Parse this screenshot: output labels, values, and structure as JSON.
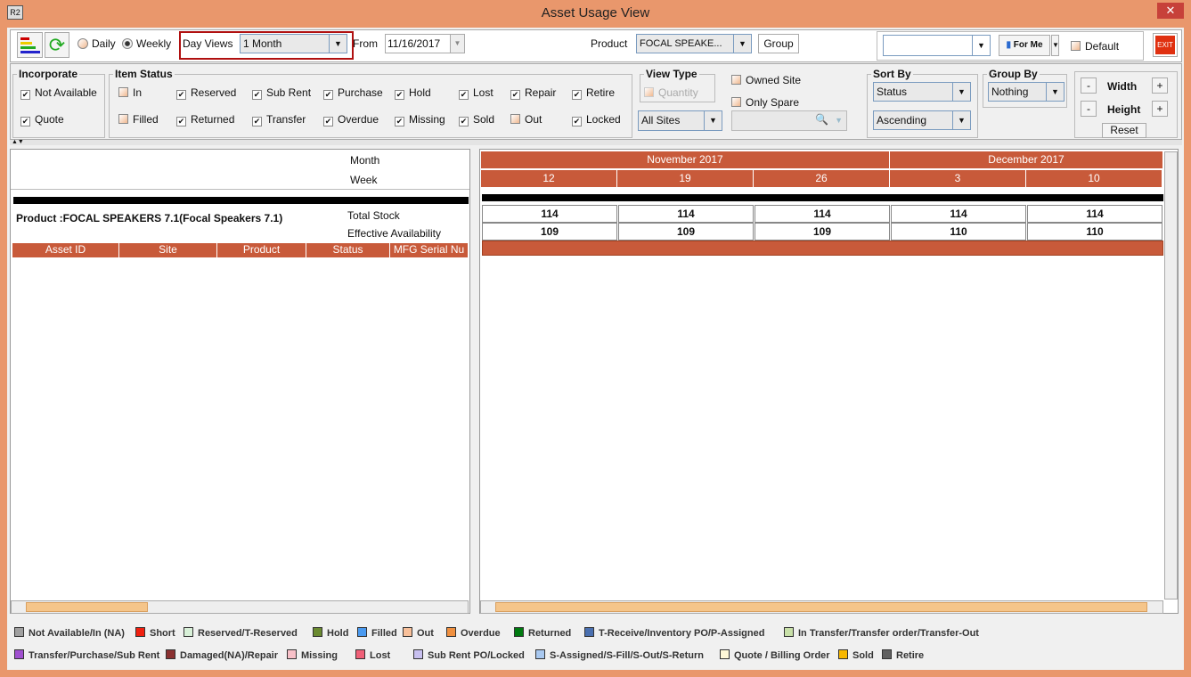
{
  "window": {
    "title": "Asset Usage View",
    "logo": "R2",
    "close": "✕"
  },
  "toolbar": {
    "daily": "Daily",
    "weekly": "Weekly",
    "weekly_selected": true,
    "day_views_label": "Day Views",
    "day_views_value": "1 Month",
    "from_label": "From",
    "from_value": "11/16/2017",
    "product_label": "Product",
    "product_value": "FOCAL SPEAKE...",
    "group_btn": "Group",
    "for_me": "For Me",
    "default_label": "Default",
    "exit": "EXIT"
  },
  "incorporate": {
    "title": "Incorporate",
    "items": [
      {
        "label": "Not Available",
        "checked": true
      },
      {
        "label": "Quote",
        "checked": true
      }
    ]
  },
  "item_status": {
    "title": "Item Status",
    "items": [
      {
        "label": "In",
        "checked": false
      },
      {
        "label": "Reserved",
        "checked": true
      },
      {
        "label": "Sub Rent",
        "checked": true
      },
      {
        "label": "Purchase",
        "checked": true
      },
      {
        "label": "Hold",
        "checked": true
      },
      {
        "label": "Lost",
        "checked": true
      },
      {
        "label": "Repair",
        "checked": true
      },
      {
        "label": "Retire",
        "checked": true
      },
      {
        "label": "Filled",
        "checked": false
      },
      {
        "label": "Returned",
        "checked": true
      },
      {
        "label": "Transfer",
        "checked": true
      },
      {
        "label": "Overdue",
        "checked": true
      },
      {
        "label": "Missing",
        "checked": true
      },
      {
        "label": "Sold",
        "checked": true
      },
      {
        "label": "Out",
        "checked": false
      },
      {
        "label": "Locked",
        "checked": true
      }
    ]
  },
  "view_type": {
    "title": "View Type",
    "quantity": "Quantity",
    "sites": "All Sites",
    "owned_site": "Owned Site",
    "only_spare": "Only Spare"
  },
  "sort_by": {
    "title": "Sort By",
    "field": "Status",
    "order": "Ascending"
  },
  "group_by": {
    "title": "Group By",
    "value": "Nothing"
  },
  "size": {
    "width": "Width",
    "height": "Height",
    "reset": "Reset",
    "minus": "-",
    "plus": "+"
  },
  "grid": {
    "month_label": "Month",
    "week_label": "Week",
    "product_text": "Product :FOCAL SPEAKERS 7.1(Focal Speakers 7.1)",
    "total_stock": "Total Stock",
    "effective": "Effective Availability",
    "columns": [
      "Asset ID",
      "Site",
      "Product",
      "Status",
      "MFG Serial Nu"
    ],
    "months": [
      "November 2017",
      "December 2017"
    ],
    "weeks": [
      "12",
      "19",
      "26",
      "3",
      "10"
    ],
    "total": [
      "114",
      "114",
      "114",
      "114",
      "114"
    ],
    "avail": [
      "109",
      "109",
      "109",
      "110",
      "110"
    ]
  },
  "legend": [
    {
      "label": "Not Available/In (NA)",
      "color": "#A0A0A0"
    },
    {
      "label": "Short",
      "color": "#F02010"
    },
    {
      "label": "Reserved/T-Reserved",
      "color": "#D8F0D8"
    },
    {
      "label": "Hold",
      "color": "#6A8A30"
    },
    {
      "label": "Filled",
      "color": "#4A9AF0"
    },
    {
      "label": "Out",
      "color": "#F8C09A"
    },
    {
      "label": "Overdue",
      "color": "#F09040"
    },
    {
      "label": "Returned",
      "color": "#007A10"
    },
    {
      "label": "T-Receive/Inventory PO/P-Assigned",
      "color": "#4A70B0"
    },
    {
      "label": "In Transfer/Transfer order/Transfer-Out",
      "color": "#C8E0A8"
    },
    {
      "label": "Transfer/Purchase/Sub Rent",
      "color": "#A050D0"
    },
    {
      "label": "Damaged(NA)/Repair",
      "color": "#8A3030"
    },
    {
      "label": "Missing",
      "color": "#F8C0C8"
    },
    {
      "label": "Lost",
      "color": "#F06078"
    },
    {
      "label": "Sub Rent PO/Locked",
      "color": "#C8C0F0"
    },
    {
      "label": "S-Assigned/S-Fill/S-Out/S-Return",
      "color": "#A8C8F0"
    },
    {
      "label": "Quote / Billing Order",
      "color": "#FFF8D8"
    },
    {
      "label": "Sold",
      "color": "#F8B800"
    },
    {
      "label": "Retire",
      "color": "#606060"
    }
  ]
}
